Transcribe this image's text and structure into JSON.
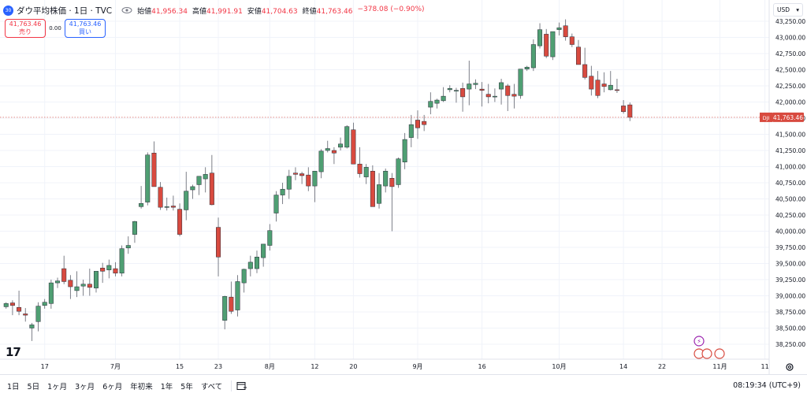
{
  "legend": {
    "badge": "30",
    "title": "ダウ平均株価 · 1日 · TVC",
    "open_label": "始値",
    "open": "41,956.34",
    "high_label": "高値",
    "high": "41,991.91",
    "low_label": "安値",
    "low": "41,704.63",
    "close_label": "終値",
    "close": "41,763.46",
    "change": "−378.08 (−0.90%)"
  },
  "trade": {
    "sell_price": "41,763.46",
    "sell_label": "売り",
    "spread": "0.00",
    "buy_price": "41,763.46",
    "buy_label": "買い"
  },
  "currency": "USD",
  "price_tag": {
    "symbol": "DJI",
    "value": "41,763.46"
  },
  "toolbar": {
    "timeframes": [
      "1日",
      "5日",
      "1ヶ月",
      "3ヶ月",
      "6ヶ月",
      "年初来",
      "1年",
      "5年",
      "すべて"
    ],
    "clock": "08:19:34 (UTC+9)"
  },
  "colors": {
    "up": "#4f9f73",
    "down": "#d84a3f",
    "accent": "#2962ff"
  },
  "chart_data": {
    "type": "candlestick",
    "y_ticks": [
      38250,
      38500,
      38750,
      39000,
      39250,
      39500,
      39750,
      40000,
      40250,
      40500,
      40750,
      41000,
      41250,
      41500,
      41750,
      42000,
      42250,
      42500,
      42750,
      43000,
      43250
    ],
    "y_tick_labels": [
      "38,250.00",
      "38,500.00",
      "38,750.00",
      "39,000.00",
      "39,250.00",
      "39,500.00",
      "39,750.00",
      "40,000.00",
      "40,250.00",
      "40,500.00",
      "40,750.00",
      "41,000.00",
      "41,250.00",
      "41,500.00",
      "41,750.00",
      "42,000.00",
      "42,250.00",
      "42,500.00",
      "42,750.00",
      "43,000.00",
      "43,250.00"
    ],
    "ylim": [
      38100,
      43350
    ],
    "x_labels": [
      {
        "label": "17",
        "bar": 6
      },
      {
        "label": "7月",
        "bar": 17
      },
      {
        "label": "15",
        "bar": 27
      },
      {
        "label": "23",
        "bar": 33
      },
      {
        "label": "8月",
        "bar": 41
      },
      {
        "label": "12",
        "bar": 48
      },
      {
        "label": "20",
        "bar": 54
      },
      {
        "label": "9月",
        "bar": 64
      },
      {
        "label": "16",
        "bar": 74
      },
      {
        "label": "10月",
        "bar": 86
      },
      {
        "label": "14",
        "bar": 96
      },
      {
        "label": "22",
        "bar": 102
      },
      {
        "label": "11月",
        "bar": 111
      },
      {
        "label": "11",
        "bar": 118
      }
    ],
    "candles": [
      [
        38830,
        38900,
        38800,
        38880
      ],
      [
        38890,
        38930,
        38700,
        38850
      ],
      [
        38820,
        39080,
        38700,
        38760
      ],
      [
        38720,
        38810,
        38600,
        38700
      ],
      [
        38500,
        38580,
        38300,
        38550
      ],
      [
        38600,
        38900,
        38450,
        38840
      ],
      [
        38850,
        38950,
        38800,
        38900
      ],
      [
        38880,
        39250,
        38800,
        39200
      ],
      [
        39200,
        39280,
        39120,
        39230
      ],
      [
        39420,
        39620,
        39180,
        39220
      ],
      [
        39240,
        39320,
        38950,
        39140
      ],
      [
        39080,
        39380,
        38980,
        39140
      ],
      [
        39150,
        39250,
        39000,
        39180
      ],
      [
        39180,
        39420,
        39000,
        39130
      ],
      [
        39120,
        39380,
        39050,
        39380
      ],
      [
        39430,
        39510,
        39200,
        39380
      ],
      [
        39400,
        39560,
        39270,
        39470
      ],
      [
        39420,
        39520,
        39300,
        39350
      ],
      [
        39350,
        39780,
        39300,
        39730
      ],
      [
        39740,
        39920,
        39650,
        39780
      ],
      [
        39950,
        40160,
        39820,
        40150
      ],
      [
        40380,
        40700,
        40350,
        40430
      ],
      [
        40450,
        41220,
        40400,
        41180
      ],
      [
        41210,
        41390,
        40730,
        40690
      ],
      [
        40680,
        40760,
        40330,
        40370
      ],
      [
        40380,
        40520,
        40320,
        40380
      ],
      [
        40390,
        40550,
        40320,
        40370
      ],
      [
        40340,
        40430,
        39920,
        39950
      ],
      [
        40330,
        40920,
        40170,
        40620
      ],
      [
        40640,
        40720,
        40500,
        40690
      ],
      [
        40720,
        40850,
        40560,
        40850
      ],
      [
        40810,
        40990,
        40600,
        40880
      ],
      [
        40900,
        41180,
        40400,
        40410
      ],
      [
        40060,
        40210,
        39300,
        39600
      ],
      [
        38620,
        39000,
        38480,
        38990
      ],
      [
        38980,
        39220,
        38720,
        38760
      ],
      [
        38780,
        39320,
        38680,
        39220
      ],
      [
        39200,
        39420,
        39050,
        39410
      ],
      [
        39420,
        39620,
        39300,
        39520
      ],
      [
        39420,
        39700,
        39350,
        39600
      ],
      [
        39590,
        39800,
        39450,
        39800
      ],
      [
        39780,
        40110,
        39700,
        40010
      ],
      [
        40280,
        40620,
        40150,
        40560
      ],
      [
        40560,
        40750,
        40420,
        40650
      ],
      [
        40650,
        40950,
        40500,
        40850
      ],
      [
        40900,
        40990,
        40790,
        40880
      ],
      [
        40890,
        40920,
        40730,
        40860
      ],
      [
        40870,
        40990,
        40620,
        40700
      ],
      [
        40700,
        40920,
        40450,
        40930
      ],
      [
        40920,
        41270,
        40820,
        41240
      ],
      [
        41250,
        41400,
        41220,
        41280
      ],
      [
        41250,
        41300,
        41040,
        41210
      ],
      [
        41300,
        41450,
        41250,
        41350
      ],
      [
        41300,
        41640,
        41280,
        41620
      ],
      [
        41570,
        41680,
        41050,
        41040
      ],
      [
        41040,
        41300,
        40830,
        40890
      ],
      [
        40840,
        41040,
        40730,
        40990
      ],
      [
        40930,
        41020,
        40420,
        40380
      ],
      [
        40430,
        40900,
        40350,
        40720
      ],
      [
        40700,
        40970,
        40600,
        40930
      ],
      [
        40820,
        40900,
        40000,
        40690
      ],
      [
        40720,
        41140,
        40670,
        41120
      ],
      [
        41070,
        41520,
        40960,
        41420
      ],
      [
        41450,
        41800,
        41300,
        41650
      ],
      [
        41720,
        41870,
        41430,
        41600
      ],
      [
        41700,
        41800,
        41550,
        41650
      ],
      [
        41920,
        42150,
        41810,
        42010
      ],
      [
        41980,
        42050,
        41900,
        42030
      ],
      [
        42020,
        42230,
        42000,
        42090
      ],
      [
        42190,
        42260,
        42150,
        42210
      ],
      [
        42180,
        42220,
        41990,
        42180
      ],
      [
        42210,
        42300,
        41850,
        42080
      ],
      [
        42200,
        42640,
        41950,
        42280
      ],
      [
        42270,
        42350,
        42200,
        42290
      ],
      [
        42200,
        42310,
        41930,
        42180
      ],
      [
        42120,
        42280,
        41980,
        42080
      ],
      [
        42090,
        42210,
        42000,
        42090
      ],
      [
        42200,
        42360,
        41960,
        42300
      ],
      [
        42250,
        42280,
        41860,
        42100
      ],
      [
        42120,
        42280,
        41900,
        42090
      ],
      [
        42100,
        42460,
        42050,
        42510
      ],
      [
        42510,
        42560,
        42480,
        42540
      ],
      [
        42530,
        42970,
        42480,
        42890
      ],
      [
        42870,
        43220,
        42830,
        43120
      ],
      [
        43050,
        43130,
        42680,
        42710
      ],
      [
        42700,
        43080,
        42650,
        43090
      ],
      [
        43120,
        43230,
        43030,
        43150
      ],
      [
        43180,
        43280,
        42950,
        43010
      ],
      [
        43010,
        43060,
        42850,
        42890
      ],
      [
        42850,
        42960,
        42600,
        42580
      ],
      [
        42580,
        42840,
        42350,
        42380
      ],
      [
        42400,
        42560,
        42100,
        42200
      ],
      [
        42340,
        42480,
        42060,
        42100
      ],
      [
        42280,
        42460,
        42150,
        42240
      ],
      [
        42190,
        42480,
        42180,
        42260
      ],
      [
        42190,
        42360,
        42140,
        42180
      ],
      [
        41940,
        42030,
        41820,
        41850
      ],
      [
        41956,
        41992,
        41705,
        41763
      ]
    ]
  }
}
